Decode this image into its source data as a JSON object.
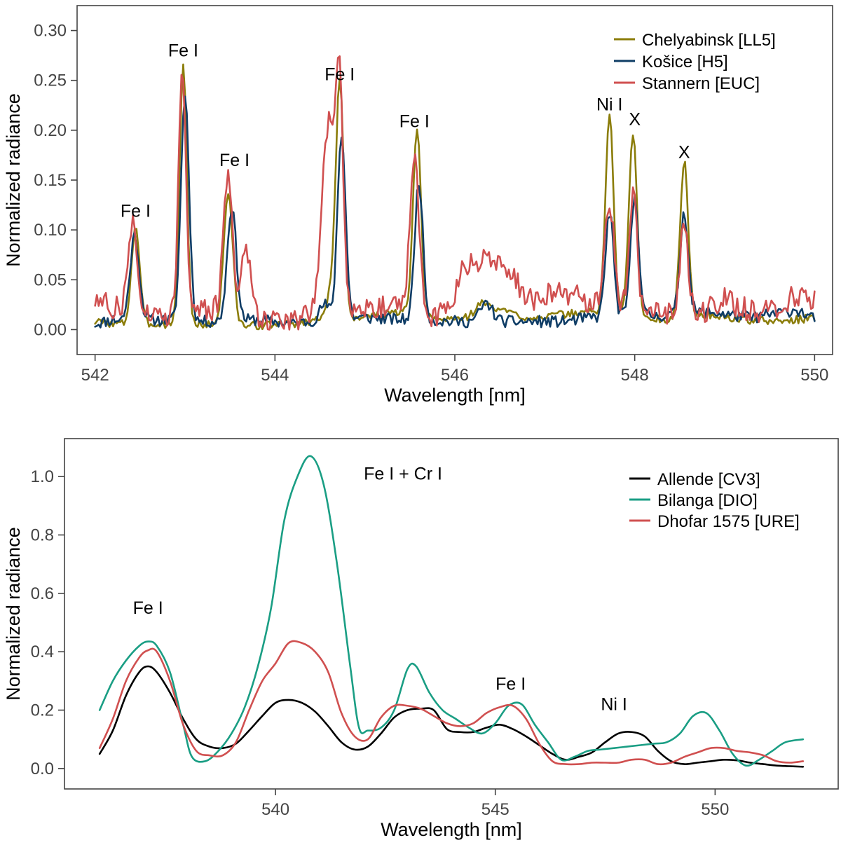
{
  "chart_data": [
    {
      "type": "line",
      "xlabel": "Wavelength [nm]",
      "ylabel": "Normalized radiance",
      "xlim": [
        541.8,
        550.2
      ],
      "ylim": [
        -0.025,
        0.325
      ],
      "xticks": [
        542,
        544,
        546,
        548,
        550
      ],
      "xtick_labels": [
        "542",
        "544",
        "546",
        "548",
        "550"
      ],
      "yticks": [
        0.0,
        0.05,
        0.1,
        0.15,
        0.2,
        0.25,
        0.3
      ],
      "ytick_labels": [
        "0.00",
        "0.05",
        "0.10",
        "0.15",
        "0.20",
        "0.25",
        "0.30"
      ],
      "legend_position": "top-right",
      "series": [
        {
          "name": "Chelyabinsk [LL5]",
          "color": "#8b7d0a",
          "baseline": [
            [
              542.0,
              0.008
            ],
            [
              542.2,
              0.006
            ],
            [
              543.4,
              0.005
            ],
            [
              543.8,
              0.004
            ],
            [
              544.2,
              0.006
            ],
            [
              544.5,
              0.01
            ],
            [
              544.9,
              0.012
            ],
            [
              545.2,
              0.015
            ],
            [
              545.4,
              0.018
            ],
            [
              545.8,
              0.01
            ],
            [
              546.2,
              0.012
            ],
            [
              546.5,
              0.02
            ],
            [
              546.8,
              0.012
            ],
            [
              547.2,
              0.015
            ],
            [
              547.5,
              0.018
            ],
            [
              548.3,
              0.01
            ],
            [
              548.8,
              0.015
            ],
            [
              549.2,
              0.01
            ],
            [
              549.6,
              0.008
            ],
            [
              550.0,
              0.012
            ]
          ],
          "peaks": [
            [
              542.45,
              0.098,
              0.045
            ],
            [
              542.98,
              0.26,
              0.04
            ],
            [
              543.48,
              0.133,
              0.05
            ],
            [
              544.6,
              0.02,
              0.05
            ],
            [
              544.72,
              0.238,
              0.045
            ],
            [
              545.58,
              0.184,
              0.045
            ],
            [
              546.3,
              0.012,
              0.08
            ],
            [
              547.72,
              0.2,
              0.045
            ],
            [
              547.98,
              0.185,
              0.045
            ],
            [
              548.55,
              0.156,
              0.045
            ]
          ],
          "noise": 0.004,
          "seed": 3
        },
        {
          "name": "Košice [H5]",
          "color": "#0f3d66",
          "baseline": [
            [
              542.0,
              0.006
            ],
            [
              542.2,
              0.01
            ],
            [
              542.6,
              0.01
            ],
            [
              543.3,
              0.008
            ],
            [
              543.8,
              0.01
            ],
            [
              544.2,
              0.006
            ],
            [
              544.5,
              0.01
            ],
            [
              545.0,
              0.012
            ],
            [
              545.4,
              0.01
            ],
            [
              546.0,
              0.008
            ],
            [
              546.8,
              0.008
            ],
            [
              547.2,
              0.008
            ],
            [
              547.5,
              0.012
            ],
            [
              548.3,
              0.014
            ],
            [
              548.8,
              0.018
            ],
            [
              549.3,
              0.012
            ],
            [
              549.8,
              0.02
            ],
            [
              550.0,
              0.01
            ]
          ],
          "peaks": [
            [
              542.44,
              0.085,
              0.05
            ],
            [
              543.0,
              0.228,
              0.045
            ],
            [
              543.52,
              0.115,
              0.05
            ],
            [
              544.55,
              0.015,
              0.05
            ],
            [
              544.74,
              0.186,
              0.045
            ],
            [
              545.6,
              0.14,
              0.045
            ],
            [
              546.35,
              0.018,
              0.07
            ],
            [
              547.72,
              0.105,
              0.045
            ],
            [
              548.0,
              0.12,
              0.045
            ],
            [
              548.55,
              0.102,
              0.045
            ]
          ],
          "noise": 0.006,
          "seed": 11
        },
        {
          "name": "Stannern [EUC]",
          "color": "#d05050",
          "baseline": [
            [
              542.0,
              0.03
            ],
            [
              542.2,
              0.022
            ],
            [
              542.7,
              0.015
            ],
            [
              543.3,
              0.02
            ],
            [
              543.8,
              0.012
            ],
            [
              544.3,
              0.01
            ],
            [
              544.5,
              0.03
            ],
            [
              545.0,
              0.022
            ],
            [
              545.3,
              0.025
            ],
            [
              545.7,
              0.012
            ],
            [
              545.95,
              0.02
            ],
            [
              546.1,
              0.065
            ],
            [
              546.4,
              0.07
            ],
            [
              546.6,
              0.06
            ],
            [
              546.8,
              0.03
            ],
            [
              547.2,
              0.038
            ],
            [
              547.5,
              0.028
            ],
            [
              548.3,
              0.015
            ],
            [
              548.7,
              0.015
            ],
            [
              549.0,
              0.03
            ],
            [
              549.4,
              0.015
            ],
            [
              549.8,
              0.035
            ],
            [
              550.0,
              0.03
            ]
          ],
          "peaks": [
            [
              542.42,
              0.09,
              0.05
            ],
            [
              542.97,
              0.25,
              0.04
            ],
            [
              543.48,
              0.14,
              0.05
            ],
            [
              543.68,
              0.07,
              0.05
            ],
            [
              544.6,
              0.18,
              0.07
            ],
            [
              544.72,
              0.2,
              0.04
            ],
            [
              545.55,
              0.16,
              0.05
            ],
            [
              547.72,
              0.1,
              0.05
            ],
            [
              547.98,
              0.115,
              0.045
            ],
            [
              548.55,
              0.09,
              0.045
            ]
          ],
          "noise": 0.012,
          "seed": 27
        }
      ],
      "annotations": [
        {
          "text": "Fe I",
          "x": 542.45,
          "y": 0.113
        },
        {
          "text": "Fe I",
          "x": 542.98,
          "y": 0.274
        },
        {
          "text": "Fe I",
          "x": 543.55,
          "y": 0.164
        },
        {
          "text": "Fe I",
          "x": 544.72,
          "y": 0.25
        },
        {
          "text": "Fe I",
          "x": 545.55,
          "y": 0.203
        },
        {
          "text": "Ni I",
          "x": 547.72,
          "y": 0.22
        },
        {
          "text": "X",
          "x": 548.0,
          "y": 0.205
        },
        {
          "text": "X",
          "x": 548.55,
          "y": 0.172
        }
      ]
    },
    {
      "type": "line",
      "xlabel": "Wavelength [nm]",
      "ylabel": "Normalized radiance",
      "xlim": [
        535.2,
        552.8
      ],
      "ylim": [
        -0.07,
        1.13
      ],
      "xticks": [
        540,
        545,
        550
      ],
      "xtick_labels": [
        "540",
        "545",
        "550"
      ],
      "yticks": [
        0.0,
        0.2,
        0.4,
        0.6,
        0.8,
        1.0
      ],
      "ytick_labels": [
        "0.0",
        "0.2",
        "0.4",
        "0.6",
        "0.8",
        "1.0"
      ],
      "legend_position": "top-right",
      "series": [
        {
          "name": "Allende [CV3]",
          "color": "#000000",
          "x": [
            536.0,
            536.3,
            536.6,
            536.9,
            537.1,
            537.3,
            537.6,
            537.9,
            538.2,
            538.5,
            538.8,
            539.1,
            539.4,
            539.7,
            540.0,
            540.3,
            540.6,
            540.9,
            541.2,
            541.5,
            541.8,
            542.1,
            542.4,
            542.7,
            543.0,
            543.3,
            543.6,
            543.9,
            544.2,
            544.5,
            544.8,
            545.1,
            545.4,
            545.7,
            546.0,
            546.3,
            546.6,
            546.9,
            547.2,
            547.5,
            547.8,
            548.1,
            548.4,
            548.7,
            549.0,
            549.3,
            549.6,
            549.9,
            550.2,
            550.5,
            550.8,
            551.1,
            551.4,
            551.7,
            552.0
          ],
          "y": [
            0.05,
            0.13,
            0.25,
            0.33,
            0.35,
            0.33,
            0.26,
            0.17,
            0.1,
            0.075,
            0.07,
            0.085,
            0.13,
            0.18,
            0.225,
            0.235,
            0.225,
            0.195,
            0.145,
            0.09,
            0.065,
            0.075,
            0.12,
            0.175,
            0.2,
            0.205,
            0.2,
            0.135,
            0.125,
            0.125,
            0.14,
            0.15,
            0.135,
            0.11,
            0.08,
            0.05,
            0.03,
            0.04,
            0.055,
            0.09,
            0.12,
            0.125,
            0.11,
            0.06,
            0.025,
            0.015,
            0.02,
            0.025,
            0.03,
            0.028,
            0.02,
            0.015,
            0.01,
            0.008,
            0.006
          ]
        },
        {
          "name": "Bilanga [DIO]",
          "color": "#1a9e84",
          "x": [
            536.0,
            536.3,
            536.6,
            536.9,
            537.1,
            537.3,
            537.6,
            537.9,
            538.1,
            538.4,
            538.7,
            539.0,
            539.3,
            539.6,
            539.9,
            540.2,
            540.5,
            540.8,
            541.1,
            541.4,
            541.7,
            541.9,
            542.1,
            542.4,
            542.7,
            543.0,
            543.2,
            543.5,
            543.8,
            544.1,
            544.4,
            544.7,
            545.0,
            545.3,
            545.6,
            545.9,
            546.2,
            546.5,
            546.8,
            547.1,
            547.4,
            547.7,
            548.0,
            548.3,
            548.6,
            548.9,
            549.2,
            549.5,
            549.8,
            550.1,
            550.4,
            550.7,
            551.0,
            551.3,
            551.6,
            552.0
          ],
          "y": [
            0.2,
            0.3,
            0.37,
            0.42,
            0.435,
            0.42,
            0.33,
            0.15,
            0.04,
            0.025,
            0.06,
            0.12,
            0.21,
            0.35,
            0.55,
            0.85,
            1.0,
            1.07,
            0.97,
            0.7,
            0.35,
            0.14,
            0.13,
            0.14,
            0.2,
            0.34,
            0.35,
            0.26,
            0.2,
            0.17,
            0.14,
            0.12,
            0.155,
            0.215,
            0.22,
            0.15,
            0.09,
            0.03,
            0.04,
            0.06,
            0.065,
            0.07,
            0.075,
            0.08,
            0.085,
            0.09,
            0.12,
            0.18,
            0.19,
            0.13,
            0.05,
            0.01,
            0.03,
            0.06,
            0.09,
            0.1
          ]
        },
        {
          "name": "Dhofar 1575 [URE]",
          "color": "#d05050",
          "x": [
            536.0,
            536.3,
            536.6,
            536.9,
            537.1,
            537.3,
            537.6,
            537.9,
            538.2,
            538.5,
            538.8,
            539.1,
            539.4,
            539.7,
            540.0,
            540.3,
            540.6,
            540.9,
            541.2,
            541.5,
            541.8,
            542.1,
            542.4,
            542.7,
            543.0,
            543.3,
            543.6,
            543.9,
            544.2,
            544.5,
            544.8,
            545.1,
            545.4,
            545.7,
            546.0,
            546.3,
            546.6,
            546.9,
            547.2,
            547.5,
            547.8,
            548.1,
            548.4,
            548.7,
            549.0,
            549.3,
            549.6,
            549.9,
            550.2,
            550.5,
            550.8,
            551.1,
            551.4,
            551.7,
            552.0
          ],
          "y": [
            0.07,
            0.17,
            0.3,
            0.38,
            0.405,
            0.4,
            0.3,
            0.15,
            0.06,
            0.045,
            0.045,
            0.09,
            0.2,
            0.3,
            0.36,
            0.43,
            0.43,
            0.4,
            0.33,
            0.19,
            0.11,
            0.1,
            0.175,
            0.215,
            0.215,
            0.205,
            0.18,
            0.155,
            0.145,
            0.155,
            0.19,
            0.21,
            0.215,
            0.17,
            0.085,
            0.025,
            0.015,
            0.015,
            0.02,
            0.02,
            0.02,
            0.03,
            0.03,
            0.015,
            0.02,
            0.04,
            0.055,
            0.07,
            0.07,
            0.06,
            0.055,
            0.045,
            0.025,
            0.02,
            0.025
          ]
        }
      ],
      "annotations": [
        {
          "text": "Fe I",
          "x": 537.1,
          "y": 0.53
        },
        {
          "text": "Fe I + Cr I",
          "x": 542.9,
          "y": 0.99
        },
        {
          "text": "Fe I",
          "x": 545.35,
          "y": 0.27
        },
        {
          "text": "Ni I",
          "x": 547.7,
          "y": 0.2
        }
      ]
    }
  ]
}
